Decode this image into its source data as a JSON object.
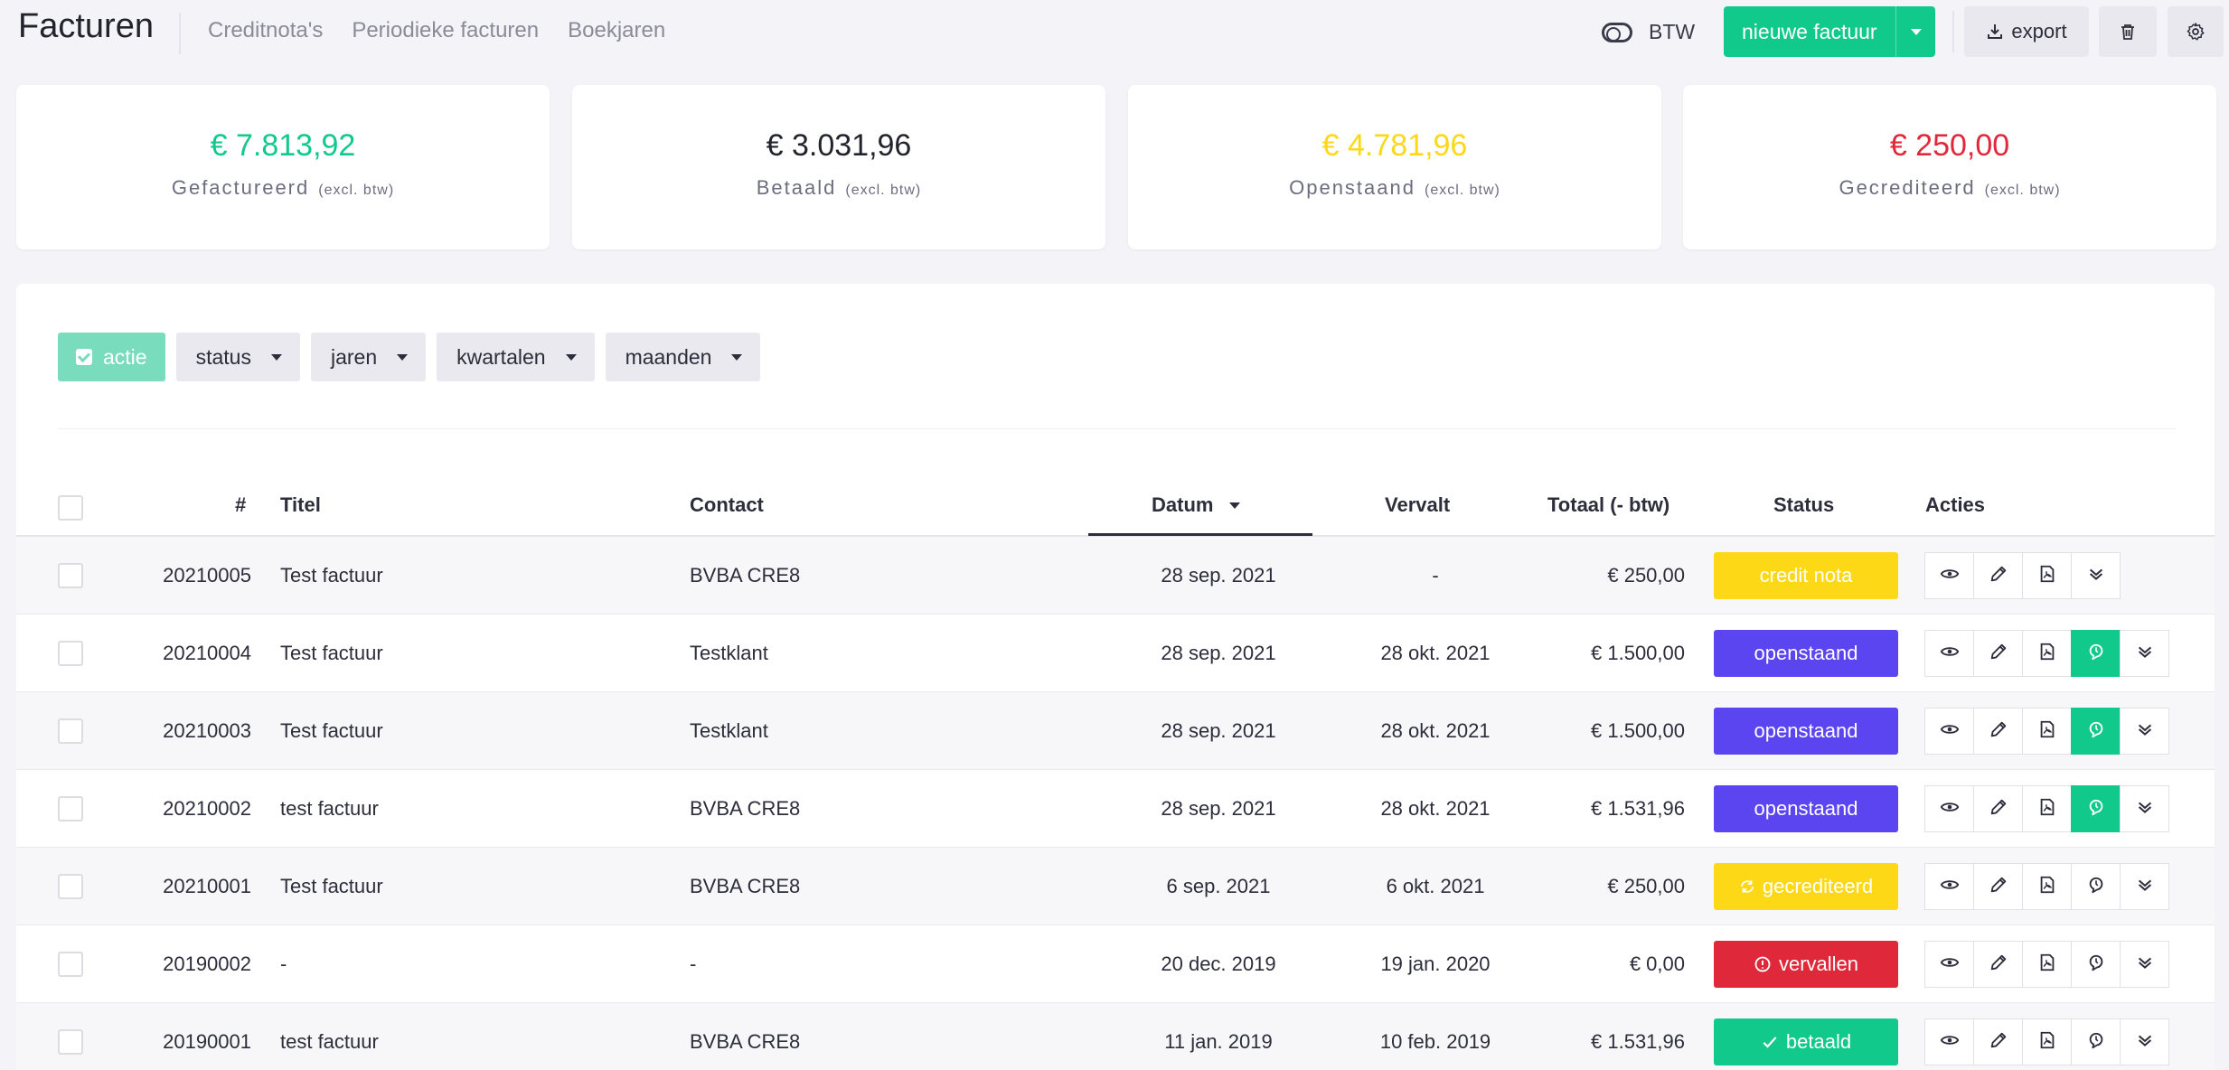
{
  "header": {
    "title": "Facturen",
    "nav": [
      "Creditnota's",
      "Periodieke facturen",
      "Boekjaren"
    ],
    "btw_label": "BTW",
    "new_invoice_label": "nieuwe factuur",
    "export_label": "export"
  },
  "cards": [
    {
      "amount": "€ 7.813,92",
      "label": "Gefactureerd",
      "note": "(excl. btw)",
      "color": "#10c98b"
    },
    {
      "amount": "€ 3.031,96",
      "label": "Betaald",
      "note": "(excl. btw)",
      "color": "#23232e"
    },
    {
      "amount": "€ 4.781,96",
      "label": "Openstaand",
      "note": "(excl. btw)",
      "color": "#fcd817"
    },
    {
      "amount": "€ 250,00",
      "label": "Gecrediteerd",
      "note": "(excl. btw)",
      "color": "#e0283b"
    }
  ],
  "filters": {
    "actie": "actie",
    "status": "status",
    "jaren": "jaren",
    "kwartalen": "kwartalen",
    "maanden": "maanden"
  },
  "table": {
    "columns": {
      "number": "#",
      "title": "Titel",
      "contact": "Contact",
      "date": "Datum",
      "due": "Vervalt",
      "total": "Totaal (- btw)",
      "status": "Status",
      "actions": "Acties"
    },
    "rows": [
      {
        "number": "20210005",
        "title": "Test factuur",
        "contact": "BVBA CRE8",
        "date": "28 sep. 2021",
        "due": "-",
        "total": "€ 250,00",
        "status": "credit nota"
      },
      {
        "number": "20210004",
        "title": "Test factuur",
        "contact": "Testklant",
        "date": "28 sep. 2021",
        "due": "28 okt. 2021",
        "total": "€ 1.500,00",
        "status": "openstaand"
      },
      {
        "number": "20210003",
        "title": "Test factuur",
        "contact": "Testklant",
        "date": "28 sep. 2021",
        "due": "28 okt. 2021",
        "total": "€ 1.500,00",
        "status": "openstaand"
      },
      {
        "number": "20210002",
        "title": "test factuur",
        "contact": "BVBA CRE8",
        "date": "28 sep. 2021",
        "due": "28 okt. 2021",
        "total": "€ 1.531,96",
        "status": "openstaand"
      },
      {
        "number": "20210001",
        "title": "Test factuur",
        "contact": "BVBA CRE8",
        "date": "6 sep. 2021",
        "due": "6 okt. 2021",
        "total": "€ 250,00",
        "status": "gecrediteerd"
      },
      {
        "number": "20190002",
        "title": "-",
        "contact": "-",
        "date": "20 dec. 2019",
        "due": "19 jan. 2020",
        "total": "€ 0,00",
        "status": "vervallen"
      },
      {
        "number": "20190001",
        "title": "test factuur",
        "contact": "BVBA CRE8",
        "date": "11 jan. 2019",
        "due": "10 feb. 2019",
        "total": "€ 1.531,96",
        "status": "betaald"
      }
    ]
  }
}
